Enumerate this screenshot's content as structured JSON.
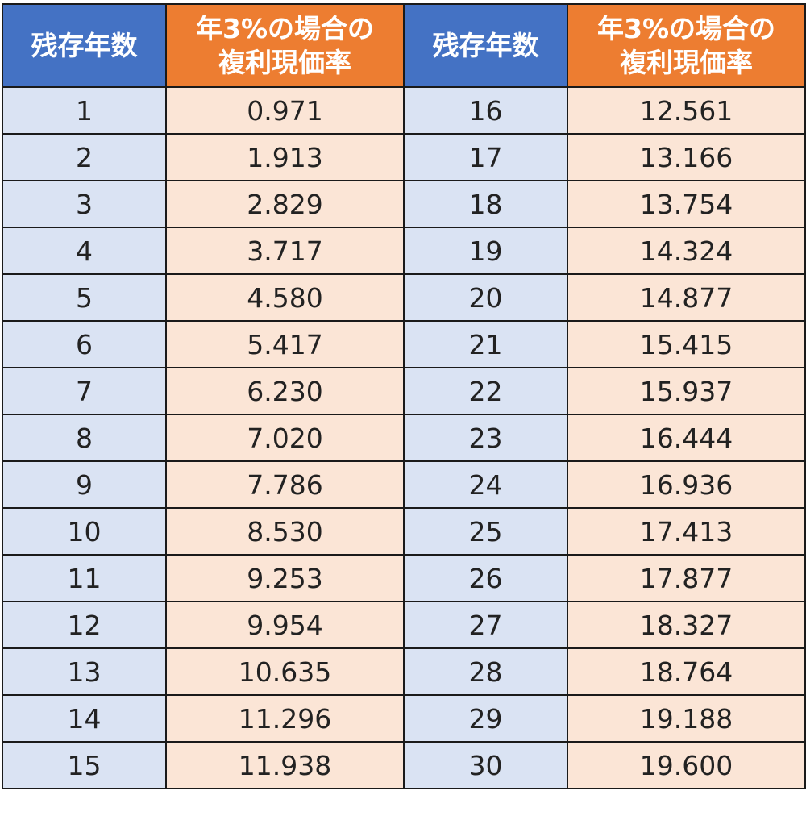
{
  "table": {
    "headers": {
      "left_year": "残存年数",
      "left_rate_line1": "年3%の場合の",
      "left_rate_line2": "複利現価率",
      "right_year": "残存年数",
      "right_rate_line1": "年3%の場合の",
      "right_rate_line2": "複利現価率"
    },
    "rows": [
      {
        "y1": "1",
        "r1": "0.971",
        "y2": "16",
        "r2": "12.561"
      },
      {
        "y1": "2",
        "r1": "1.913",
        "y2": "17",
        "r2": "13.166"
      },
      {
        "y1": "3",
        "r1": "2.829",
        "y2": "18",
        "r2": "13.754"
      },
      {
        "y1": "4",
        "r1": "3.717",
        "y2": "19",
        "r2": "14.324"
      },
      {
        "y1": "5",
        "r1": "4.580",
        "y2": "20",
        "r2": "14.877"
      },
      {
        "y1": "6",
        "r1": "5.417",
        "y2": "21",
        "r2": "15.415"
      },
      {
        "y1": "7",
        "r1": "6.230",
        "y2": "22",
        "r2": "15.937"
      },
      {
        "y1": "8",
        "r1": "7.020",
        "y2": "23",
        "r2": "16.444"
      },
      {
        "y1": "9",
        "r1": "7.786",
        "y2": "24",
        "r2": "16.936"
      },
      {
        "y1": "10",
        "r1": "8.530",
        "y2": "25",
        "r2": "17.413"
      },
      {
        "y1": "11",
        "r1": "9.253",
        "y2": "26",
        "r2": "17.877"
      },
      {
        "y1": "12",
        "r1": "9.954",
        "y2": "27",
        "r2": "18.327"
      },
      {
        "y1": "13",
        "r1": "10.635",
        "y2": "28",
        "r2": "18.764"
      },
      {
        "y1": "14",
        "r1": "11.296",
        "y2": "29",
        "r2": "19.188"
      },
      {
        "y1": "15",
        "r1": "11.938",
        "y2": "30",
        "r2": "19.600"
      }
    ]
  },
  "colors": {
    "year_header": "#4472c4",
    "rate_header": "#ed7d31",
    "year_cell": "#dae3f3",
    "rate_cell": "#fbe5d6"
  }
}
